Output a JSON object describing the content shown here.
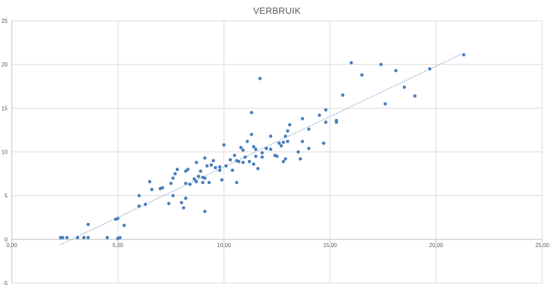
{
  "chart_data": {
    "type": "scatter",
    "title": "VERBRUIK",
    "xlabel": "",
    "ylabel": "",
    "xlim": [
      0,
      25
    ],
    "ylim": [
      -5,
      25
    ],
    "x_ticks": [
      0,
      5,
      10,
      15,
      20,
      25
    ],
    "x_tick_labels": [
      "0,00",
      "5,00",
      "10,00",
      "15,00",
      "20,00",
      "25,00"
    ],
    "y_ticks": [
      -5,
      0,
      5,
      10,
      15,
      20,
      25
    ],
    "y_tick_labels": [
      "-5",
      "0",
      "5",
      "10",
      "15",
      "20",
      "25"
    ],
    "grid": true,
    "marker_color": "#4a7ebb",
    "trendline": {
      "type": "linear",
      "style": "dotted",
      "color": "#4a7ebb",
      "x_start": 2.3,
      "y_start": -0.6,
      "x_end": 21.2,
      "y_end": 21.2
    },
    "series": [
      {
        "points": [
          [
            2.3,
            0.2
          ],
          [
            2.4,
            0.2
          ],
          [
            2.6,
            0.2
          ],
          [
            3.1,
            0.2
          ],
          [
            3.4,
            0.2
          ],
          [
            3.6,
            0.2
          ],
          [
            3.6,
            1.7
          ],
          [
            4.5,
            0.2
          ],
          [
            4.9,
            2.3
          ],
          [
            5.0,
            2.4
          ],
          [
            5.0,
            0.1
          ],
          [
            5.1,
            0.2
          ],
          [
            5.3,
            1.6
          ],
          [
            6.0,
            3.8
          ],
          [
            6.0,
            5.0
          ],
          [
            6.3,
            4.0
          ],
          [
            6.5,
            6.6
          ],
          [
            6.6,
            5.7
          ],
          [
            7.0,
            5.8
          ],
          [
            7.1,
            5.9
          ],
          [
            7.4,
            4.1
          ],
          [
            7.5,
            6.4
          ],
          [
            7.6,
            5.0
          ],
          [
            7.6,
            7.0
          ],
          [
            7.7,
            7.5
          ],
          [
            7.8,
            8.0
          ],
          [
            8.0,
            4.2
          ],
          [
            8.1,
            3.6
          ],
          [
            8.2,
            4.7
          ],
          [
            8.2,
            6.4
          ],
          [
            8.2,
            7.8
          ],
          [
            8.3,
            8.0
          ],
          [
            8.4,
            6.3
          ],
          [
            8.6,
            6.9
          ],
          [
            8.7,
            8.8
          ],
          [
            8.7,
            6.6
          ],
          [
            8.8,
            7.2
          ],
          [
            8.9,
            7.8
          ],
          [
            9.0,
            6.5
          ],
          [
            9.0,
            7.1
          ],
          [
            9.1,
            7.0
          ],
          [
            9.1,
            9.3
          ],
          [
            9.1,
            3.2
          ],
          [
            9.2,
            8.4
          ],
          [
            9.3,
            6.5
          ],
          [
            9.4,
            8.5
          ],
          [
            9.5,
            9.0
          ],
          [
            9.6,
            8.2
          ],
          [
            9.8,
            8.3
          ],
          [
            9.8,
            7.9
          ],
          [
            9.9,
            6.8
          ],
          [
            10.0,
            10.8
          ],
          [
            10.1,
            8.4
          ],
          [
            10.3,
            9.1
          ],
          [
            10.4,
            7.9
          ],
          [
            10.5,
            9.6
          ],
          [
            10.6,
            9.0
          ],
          [
            10.6,
            6.5
          ],
          [
            10.7,
            8.9
          ],
          [
            10.8,
            10.5
          ],
          [
            10.9,
            8.8
          ],
          [
            10.9,
            10.2
          ],
          [
            11.0,
            9.4
          ],
          [
            11.1,
            11.2
          ],
          [
            11.2,
            8.9
          ],
          [
            11.3,
            12.0
          ],
          [
            11.3,
            14.5
          ],
          [
            11.4,
            10.6
          ],
          [
            11.4,
            8.6
          ],
          [
            11.5,
            9.5
          ],
          [
            11.5,
            10.3
          ],
          [
            11.6,
            8.1
          ],
          [
            11.7,
            18.4
          ],
          [
            11.8,
            9.9
          ],
          [
            11.8,
            9.4
          ],
          [
            12.0,
            10.4
          ],
          [
            12.2,
            11.8
          ],
          [
            12.2,
            10.3
          ],
          [
            12.4,
            9.6
          ],
          [
            12.5,
            9.5
          ],
          [
            12.6,
            11.0
          ],
          [
            12.7,
            10.7
          ],
          [
            12.8,
            11.1
          ],
          [
            12.8,
            8.9
          ],
          [
            12.9,
            11.8
          ],
          [
            12.9,
            9.2
          ],
          [
            13.0,
            12.4
          ],
          [
            13.0,
            11.2
          ],
          [
            13.1,
            13.1
          ],
          [
            13.5,
            10.0
          ],
          [
            13.6,
            9.2
          ],
          [
            13.7,
            11.2
          ],
          [
            13.7,
            13.8
          ],
          [
            14.0,
            10.4
          ],
          [
            14.0,
            12.6
          ],
          [
            14.5,
            14.2
          ],
          [
            14.7,
            11.0
          ],
          [
            14.8,
            14.8
          ],
          [
            14.8,
            13.4
          ],
          [
            15.3,
            13.4
          ],
          [
            15.3,
            13.6
          ],
          [
            15.6,
            16.5
          ],
          [
            16.0,
            20.2
          ],
          [
            16.5,
            18.8
          ],
          [
            17.4,
            20.0
          ],
          [
            17.6,
            15.5
          ],
          [
            18.1,
            19.3
          ],
          [
            18.5,
            17.4
          ],
          [
            19.0,
            16.4
          ],
          [
            19.7,
            19.5
          ],
          [
            21.3,
            21.1
          ]
        ]
      }
    ]
  }
}
